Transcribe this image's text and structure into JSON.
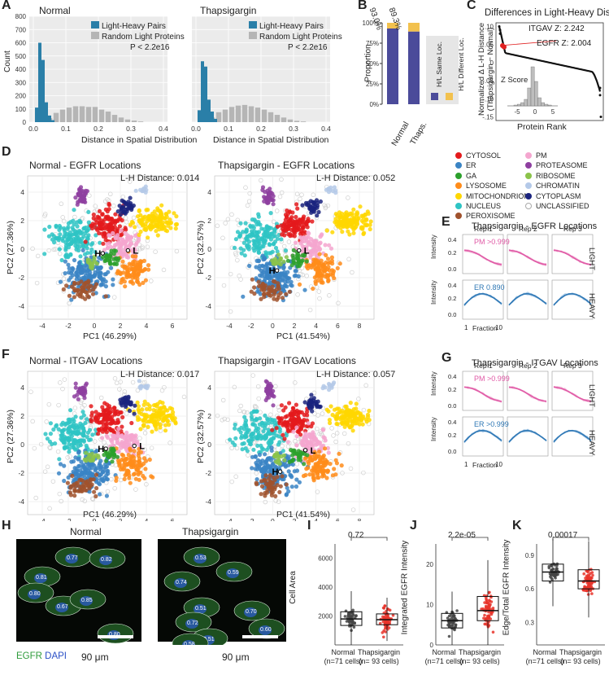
{
  "panel_labels": [
    "A",
    "B",
    "C",
    "D",
    "E",
    "F",
    "G",
    "H",
    "I",
    "J",
    "K"
  ],
  "panelA": {
    "titles": [
      "Normal",
      "Thapsigargin"
    ],
    "ylabel": "Count",
    "xlabel": "Distance in Spatial Distribution",
    "legend": [
      "Light-Heavy Pairs",
      "Random Light Proteins"
    ],
    "pvalue": "P < 2.2e16",
    "yticks": [
      "0",
      "100",
      "200",
      "300",
      "400",
      "500",
      "600",
      "700",
      "800"
    ],
    "xticks": [
      "0.0",
      "0.1",
      "0.2",
      "0.3",
      "0.4"
    ],
    "colors": {
      "pairs": "#2a7fa8",
      "random": "#b5b5b5"
    }
  },
  "panelB": {
    "ylabel": "Proportion",
    "yticks": [
      "0%",
      "25%",
      "50%",
      "75%",
      "100%"
    ],
    "categories": [
      "Normal",
      "Thaps."
    ],
    "percent_labels": [
      "93.0%",
      "89.3%"
    ],
    "legend": [
      "H/L Same Loc.",
      "H/L Different Loc."
    ],
    "colors": {
      "same": "#4b4b9a",
      "different": "#f2c14e"
    }
  },
  "panelC": {
    "title": "Differences in Light-Heavy Distance",
    "ylabel": "Normalized Δ L-H Distance (Thapsigargin − Normal)",
    "xlabel": "Protein Rank",
    "yticks": [
      ".10",
      ".05",
      "0",
      "-.05",
      "-.10",
      "-.15"
    ],
    "annotations": [
      "ITGAV Z: 2.242",
      "EGFR Z: 2.004"
    ],
    "inset_title": "Z Score",
    "inset_ticks": [
      "-5",
      "0",
      "5"
    ]
  },
  "legend_locations": {
    "items": [
      {
        "name": "CYTOSOL",
        "color": "#e41a1c"
      },
      {
        "name": "PM",
        "color": "#f4a6cf"
      },
      {
        "name": "ER",
        "color": "#3a84c4"
      },
      {
        "name": "PROTEASOME",
        "color": "#8e3fa0"
      },
      {
        "name": "GA",
        "color": "#2ca02c"
      },
      {
        "name": "RIBOSOME",
        "color": "#8bc34a"
      },
      {
        "name": "LYSOSOME",
        "color": "#ff8c1a"
      },
      {
        "name": "CHROMATIN",
        "color": "#b4c9e8"
      },
      {
        "name": "MITOCHONDRION",
        "color": "#ffd700"
      },
      {
        "name": "CYTOPLASM",
        "color": "#1a237e"
      },
      {
        "name": "NUCLEUS",
        "color": "#2ec4c4"
      },
      {
        "name": "UNCLASSIFIED",
        "color": "#dddddd"
      },
      {
        "name": "PEROXISOME",
        "color": "#a0522d"
      }
    ]
  },
  "pca": [
    {
      "id": "D1",
      "title": "Normal - EGFR Locations",
      "distance": "L-H Distance: 0.014",
      "xlabel": "PC1 (46.29%)",
      "ylabel": "PC2 (27.36%)",
      "xticks": [
        "-4",
        "-2",
        "0",
        "2",
        "4",
        "6"
      ],
      "yticks": [
        "4",
        "2",
        "0",
        "-2",
        "-4"
      ]
    },
    {
      "id": "D2",
      "title": "Thapsigargin - EGFR Locations",
      "distance": "L-H Distance: 0.052",
      "xlabel": "PC1 (41.54%)",
      "ylabel": "PC2 (32.57%)",
      "xticks": [
        "-4",
        "-2",
        "0",
        "2",
        "4",
        "6",
        "8"
      ],
      "yticks": [
        "4",
        "2",
        "0",
        "-2",
        "-4"
      ]
    },
    {
      "id": "F1",
      "title": "Normal - ITGAV Locations",
      "distance": "L-H Distance: 0.017",
      "xlabel": "PC1 (46.29%)",
      "ylabel": "PC2 (27.36%)",
      "xticks": [
        "-4",
        "-2",
        "0",
        "2",
        "4",
        "6"
      ],
      "yticks": [
        "4",
        "2",
        "0",
        "-2",
        "-4"
      ]
    },
    {
      "id": "F2",
      "title": "Thapsigargin - ITGAV Locations",
      "distance": "L-H Distance: 0.057",
      "xlabel": "PC1 (41.54%)",
      "ylabel": "PC2 (32.57%)",
      "xticks": [
        "-4",
        "-2",
        "0",
        "2",
        "4",
        "6",
        "8"
      ],
      "yticks": [
        "4",
        "2",
        "0",
        "-2",
        "-4"
      ]
    }
  ],
  "panelE": {
    "title": "Thapsigargin - EGFR Locations",
    "reps": [
      "Rep 1",
      "Rep 2",
      "Rep 3"
    ],
    "rows": [
      "LIGHT",
      "HEAVY"
    ],
    "light_label": "PM >0.999",
    "heavy_label": "ER 0.890",
    "ylabel": "Intensity",
    "xlabel": "Fraction",
    "yticks": [
      "0.0",
      "0.2",
      "0.4"
    ],
    "xticks": [
      "1",
      "10"
    ]
  },
  "panelG": {
    "title": "Thapsigargin - ITGAV Locations",
    "reps": [
      "Rep 1",
      "Rep 2",
      "Rep 3"
    ],
    "rows": [
      "LIGHT",
      "HEAVY"
    ],
    "light_label": "PM >0.999",
    "heavy_label": "ER >0.999",
    "ylabel": "Intensity",
    "xlabel": "Fraction",
    "yticks": [
      "0.0",
      "0.2",
      "0.4"
    ],
    "xticks": [
      "1",
      "10"
    ]
  },
  "panelH": {
    "titles": [
      "Normal",
      "Thapsigargin"
    ],
    "scale": "90 μm",
    "stain_egfr": "EGFR",
    "stain_dapi": "DAPI",
    "normal_values": [
      "0.81",
      "0.77",
      "0.82",
      "0.80",
      "0.67",
      "0.85",
      "0.80"
    ],
    "thaps_values": [
      "0.53",
      "0.74",
      "0.59",
      "0.51",
      "0.72",
      "0.51",
      "0.70",
      "0.60",
      "0.58"
    ]
  },
  "chart_data": [
    {
      "type": "bar",
      "title": "Normal",
      "xlabel": "Distance in Spatial Distribution",
      "ylabel": "Count",
      "ylim": [
        0,
        800
      ],
      "series": [
        {
          "name": "Light-Heavy Pairs",
          "x": [
            0.01,
            0.02,
            0.03,
            0.04,
            0.05,
            0.06
          ],
          "values": [
            110,
            600,
            470,
            150,
            50,
            15
          ]
        },
        {
          "name": "Random Light Proteins",
          "x": [
            0.05,
            0.07,
            0.09,
            0.11,
            0.13,
            0.15,
            0.17,
            0.19,
            0.21,
            0.23,
            0.25,
            0.27,
            0.29,
            0.31,
            0.33
          ],
          "values": [
            30,
            70,
            95,
            110,
            120,
            120,
            115,
            115,
            95,
            80,
            55,
            35,
            20,
            12,
            5
          ]
        }
      ]
    },
    {
      "type": "bar",
      "title": "Thapsigargin",
      "xlabel": "Distance in Spatial Distribution",
      "ylim": [
        0,
        800
      ],
      "series": [
        {
          "name": "Light-Heavy Pairs",
          "x": [
            0.01,
            0.02,
            0.03,
            0.04,
            0.05,
            0.06
          ],
          "values": [
            90,
            460,
            420,
            170,
            80,
            25
          ]
        },
        {
          "name": "Random Light Proteins",
          "x": [
            0.05,
            0.07,
            0.09,
            0.11,
            0.13,
            0.15,
            0.17,
            0.19,
            0.21,
            0.23,
            0.25,
            0.27,
            0.29,
            0.31,
            0.33
          ],
          "values": [
            35,
            75,
            95,
            115,
            125,
            130,
            120,
            110,
            95,
            75,
            55,
            35,
            20,
            10,
            5
          ]
        }
      ]
    },
    {
      "type": "bar",
      "title": "B",
      "categories": [
        "Normal",
        "Thaps."
      ],
      "series": [
        {
          "name": "H/L Same Loc.",
          "values": [
            93.0,
            89.3
          ]
        },
        {
          "name": "H/L Different Loc.",
          "values": [
            7.0,
            10.7
          ]
        }
      ],
      "ylabel": "Proportion",
      "ylim": [
        0,
        100
      ]
    },
    {
      "type": "box",
      "title": "I",
      "ylabel": "Cell Area",
      "categories": [
        "Normal\n(n=71 cells)",
        "Thapsigargin\n(n= 93 cells)"
      ],
      "pvalue": "0.72",
      "ylim": [
        0,
        7000
      ],
      "box": [
        {
          "q1": 1350,
          "median": 1800,
          "q3": 2300
        },
        {
          "q1": 1400,
          "median": 1750,
          "q3": 2150
        }
      ]
    },
    {
      "type": "box",
      "title": "J",
      "ylabel": "Integrated EGFR Intensity",
      "categories": [
        "Normal\n(n=71 cells)",
        "Thapsigargin\n(n= 93 cells)"
      ],
      "pvalue": "2.2e-05",
      "ylim": [
        0,
        25
      ],
      "box": [
        {
          "q1": 4.2,
          "median": 6,
          "q3": 7.8
        },
        {
          "q1": 6,
          "median": 8.5,
          "q3": 12
        }
      ]
    },
    {
      "type": "box",
      "title": "K",
      "ylabel": "Edge/Total EGFR Intensity",
      "categories": [
        "Normal\n(n=71 cells)",
        "Thapsigargin\n(n= 93 cells)"
      ],
      "pvalue": "0.00017",
      "ylim": [
        0.1,
        1.0
      ],
      "box": [
        {
          "q1": 0.67,
          "median": 0.75,
          "q3": 0.82
        },
        {
          "q1": 0.6,
          "median": 0.67,
          "q3": 0.77
        }
      ]
    }
  ],
  "panelIJK": {
    "I": {
      "ylabel": "Cell Area",
      "pvalue": "0.72",
      "yticks": [
        "2000",
        "4000",
        "6000"
      ]
    },
    "J": {
      "ylabel": "Integrated EGFR Intensity",
      "pvalue": "2.2e-05",
      "yticks": [
        "0",
        "10",
        "20"
      ]
    },
    "K": {
      "ylabel": "Edge/Total EGFR Intensity",
      "pvalue": "0.00017",
      "yticks": [
        "0.3",
        "0.6",
        "0.9"
      ]
    },
    "xcat1": "Normal",
    "xcat1n": "(n=71 cells)",
    "xcat2": "Thapsigargin",
    "xcat2n": "(n= 93 cells)"
  }
}
